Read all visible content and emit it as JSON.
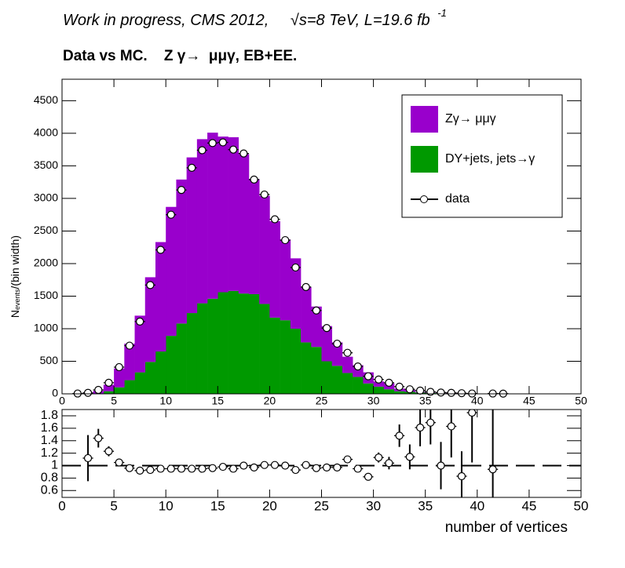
{
  "chart_data": [
    {
      "type": "histogram",
      "title": [
        "Work in progress, CMS 2012,",
        "√s=8 TeV, L=19.6 fb",
        "-1"
      ],
      "subtitle": "Data vs MC.    Z γ→  μμγ, EB+EE.",
      "ylabel": [
        "N",
        "events",
        "/(bin width)"
      ],
      "bins": [
        1,
        2,
        3,
        4,
        5,
        6,
        7,
        8,
        9,
        10,
        11,
        12,
        13,
        14,
        15,
        16,
        17,
        18,
        19,
        20,
        21,
        22,
        23,
        24,
        25,
        26,
        27,
        28,
        29,
        30,
        31,
        32,
        33,
        34,
        35,
        36,
        37,
        38,
        39,
        40,
        41,
        42,
        43
      ],
      "series": [
        {
          "name": "DY+jets, jets→γ",
          "color": "#009900",
          "values": [
            0,
            0,
            5,
            40,
            100,
            210,
            330,
            490,
            650,
            890,
            1080,
            1240,
            1390,
            1460,
            1560,
            1580,
            1540,
            1530,
            1380,
            1170,
            1130,
            1000,
            790,
            720,
            500,
            430,
            320,
            260,
            160,
            110,
            70,
            40,
            30,
            20,
            15,
            10,
            5,
            3,
            2,
            1,
            1,
            0
          ]
        },
        {
          "name": "Zγ→ μμγ",
          "color": "#9900cc",
          "values": [
            5,
            15,
            40,
            100,
            290,
            560,
            870,
            1300,
            1680,
            1980,
            2210,
            2390,
            2520,
            2550,
            2390,
            2360,
            2140,
            1770,
            1660,
            1480,
            1240,
            1080,
            850,
            620,
            540,
            360,
            250,
            180,
            170,
            80,
            90,
            40,
            30,
            10,
            5,
            10,
            10,
            9,
            4,
            3,
            4,
            3
          ]
        }
      ],
      "data": {
        "name": "data",
        "x": [
          1.5,
          2.5,
          3.5,
          4.5,
          5.5,
          6.5,
          7.5,
          8.5,
          9.5,
          10.5,
          11.5,
          12.5,
          13.5,
          14.5,
          15.5,
          16.5,
          17.5,
          18.5,
          19.5,
          20.5,
          21.5,
          22.5,
          23.5,
          24.5,
          25.5,
          26.5,
          27.5,
          28.5,
          29.5,
          30.5,
          31.5,
          32.5,
          33.5,
          34.5,
          35.5,
          36.5,
          37.5,
          38.5,
          39.5,
          41.5,
          42.5
        ],
        "values": [
          5,
          15,
          60,
          170,
          410,
          740,
          1110,
          1670,
          2210,
          2750,
          3130,
          3470,
          3740,
          3850,
          3860,
          3750,
          3690,
          3290,
          3060,
          2680,
          2360,
          1940,
          1640,
          1280,
          1010,
          770,
          630,
          420,
          270,
          220,
          170,
          110,
          70,
          50,
          30,
          20,
          15,
          10,
          5,
          5,
          3
        ]
      },
      "xlim": [
        0,
        50
      ],
      "xticks": [
        0,
        5,
        10,
        15,
        20,
        25,
        30,
        35,
        40,
        45,
        50
      ],
      "ylim": [
        0,
        4830
      ],
      "yticks": [
        0,
        500,
        1000,
        1500,
        2000,
        2500,
        3000,
        3500,
        4000,
        4500
      ],
      "legend": "top-right"
    },
    {
      "type": "errorbar",
      "xlabel": "number of vertices",
      "x": [
        2.5,
        3.5,
        4.5,
        5.5,
        6.5,
        7.5,
        8.5,
        9.5,
        10.5,
        11.5,
        12.5,
        13.5,
        14.5,
        15.5,
        16.5,
        17.5,
        18.5,
        19.5,
        20.5,
        21.5,
        22.5,
        23.5,
        24.5,
        25.5,
        26.5,
        27.5,
        28.5,
        29.5,
        30.5,
        31.5,
        32.5,
        33.5,
        34.5,
        35.5,
        36.5,
        37.5,
        38.5,
        39.5,
        41.5
      ],
      "values": [
        1.12,
        1.44,
        1.23,
        1.05,
        0.96,
        0.92,
        0.93,
        0.95,
        0.95,
        0.95,
        0.95,
        0.95,
        0.96,
        0.98,
        0.95,
        1.0,
        0.97,
        1.01,
        1.01,
        1.0,
        0.93,
        1.01,
        0.96,
        0.97,
        0.97,
        1.1,
        0.95,
        0.82,
        1.13,
        1.04,
        1.48,
        1.14,
        1.61,
        1.69,
        1.0,
        1.63,
        0.83,
        1.85,
        0.94
      ],
      "errors": [
        0.37,
        0.15,
        0.08,
        0.04,
        0.02,
        0.02,
        0.02,
        0.02,
        0.02,
        0.02,
        0.02,
        0.02,
        0.02,
        0.02,
        0.02,
        0.02,
        0.02,
        0.02,
        0.02,
        0.02,
        0.02,
        0.02,
        0.02,
        0.02,
        0.03,
        0.04,
        0.04,
        0.05,
        0.08,
        0.1,
        0.18,
        0.2,
        0.3,
        0.35,
        0.38,
        0.5,
        0.4,
        0.8,
        1.0
      ],
      "xlim": [
        0,
        50
      ],
      "xticks": [
        0,
        5,
        10,
        15,
        20,
        25,
        30,
        35,
        40,
        45,
        50
      ],
      "ylim": [
        0.49,
        1.9
      ],
      "yticks": [
        0.6,
        0.8,
        1,
        1.2,
        1.4,
        1.6,
        1.8
      ],
      "ref_line": 1
    }
  ]
}
